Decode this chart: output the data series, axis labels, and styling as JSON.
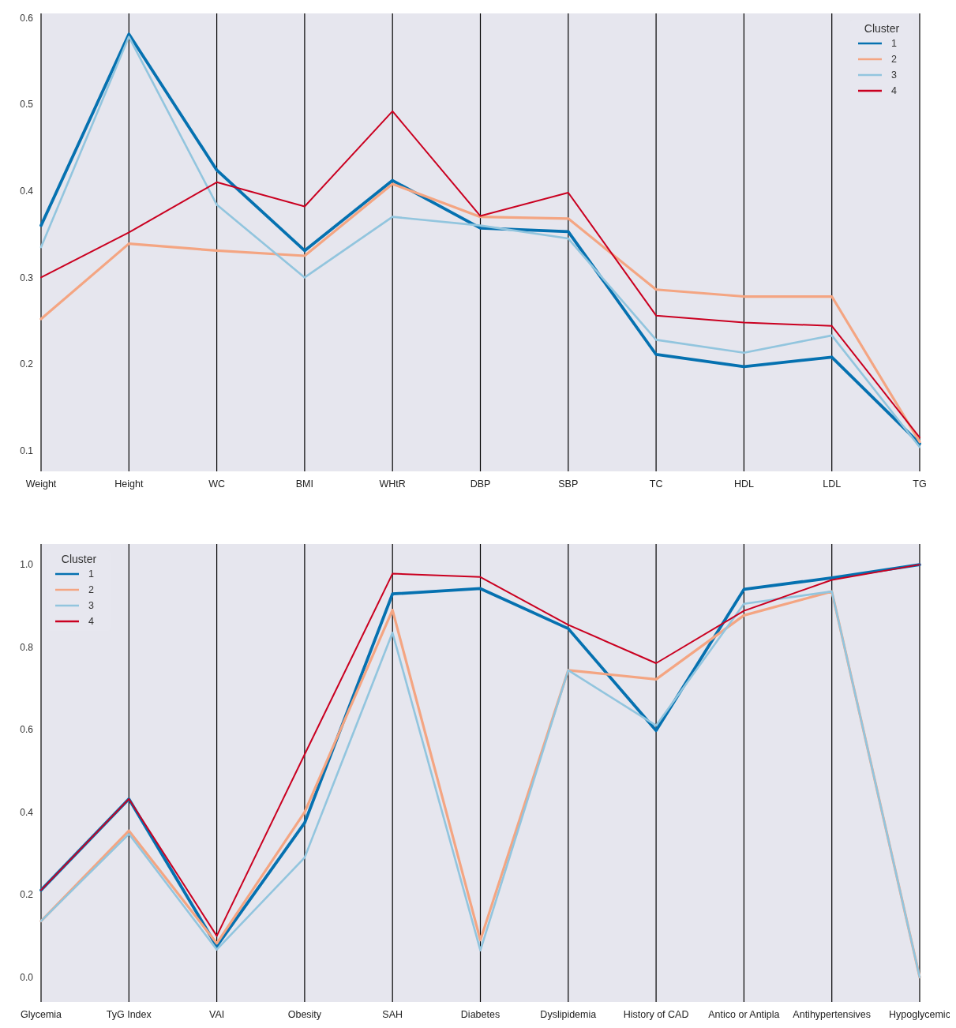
{
  "chart_data": [
    {
      "type": "line",
      "categories": [
        "Weight",
        "Height",
        "WC",
        "BMI",
        "WHtR",
        "DBP",
        "SBP",
        "TC",
        "HDL",
        "LDL",
        "TG"
      ],
      "legend_title": "Cluster",
      "legend": "top right",
      "grid": "x",
      "ylim": [
        0.076,
        0.605
      ],
      "yticks": [
        0.1,
        0.2,
        0.3,
        0.4,
        0.5,
        0.6
      ],
      "series": [
        {
          "name": "1",
          "color": "#0571b0",
          "values": [
            0.36,
            0.581,
            0.424,
            0.331,
            0.412,
            0.357,
            0.353,
            0.211,
            0.197,
            0.208,
            0.108
          ]
        },
        {
          "name": "2",
          "color": "#f4a582",
          "values": [
            0.252,
            0.339,
            0.331,
            0.325,
            0.408,
            0.37,
            0.368,
            0.286,
            0.278,
            0.278,
            0.11
          ]
        },
        {
          "name": "3",
          "color": "#92c5de",
          "values": [
            0.335,
            0.578,
            0.384,
            0.3,
            0.37,
            0.36,
            0.345,
            0.228,
            0.213,
            0.233,
            0.104
          ]
        },
        {
          "name": "4",
          "color": "#ca0020",
          "values": [
            0.3,
            0.352,
            0.41,
            0.382,
            0.492,
            0.371,
            0.398,
            0.256,
            0.248,
            0.244,
            0.115
          ]
        }
      ]
    },
    {
      "type": "line",
      "categories": [
        "Glycemia",
        "TyG Index",
        "VAI",
        "Obesity",
        "SAH",
        "Diabetes",
        "Dyslipidemia",
        "History of CAD",
        "Antico or Antipla",
        "Antihypertensives",
        "Hypoglycemic"
      ],
      "legend_title": "Cluster",
      "legend": "top left",
      "grid": "x",
      "ylim": [
        -0.06,
        1.05
      ],
      "yticks": [
        {
          "value": 0,
          "label": "0.0"
        },
        0.2,
        0.4,
        0.6,
        0.8,
        {
          "value": 1,
          "label": "1.0"
        }
      ],
      "series": [
        {
          "name": "1",
          "color": "#0571b0",
          "values": [
            0.211,
            0.432,
            0.075,
            0.374,
            0.929,
            0.942,
            0.845,
            0.598,
            0.94,
            0.968,
            1.0
          ]
        },
        {
          "name": "2",
          "color": "#f4a582",
          "values": [
            0.136,
            0.355,
            0.082,
            0.4,
            0.89,
            0.09,
            0.744,
            0.722,
            0.877,
            0.935,
            0.0
          ]
        },
        {
          "name": "3",
          "color": "#92c5de",
          "values": [
            0.136,
            0.347,
            0.067,
            0.29,
            0.835,
            0.065,
            0.744,
            0.61,
            0.905,
            0.935,
            0.0
          ]
        },
        {
          "name": "4",
          "color": "#ca0020",
          "values": [
            0.211,
            0.432,
            0.1,
            0.54,
            0.978,
            0.97,
            0.854,
            0.761,
            0.888,
            0.963,
            1.0
          ]
        }
      ]
    }
  ]
}
